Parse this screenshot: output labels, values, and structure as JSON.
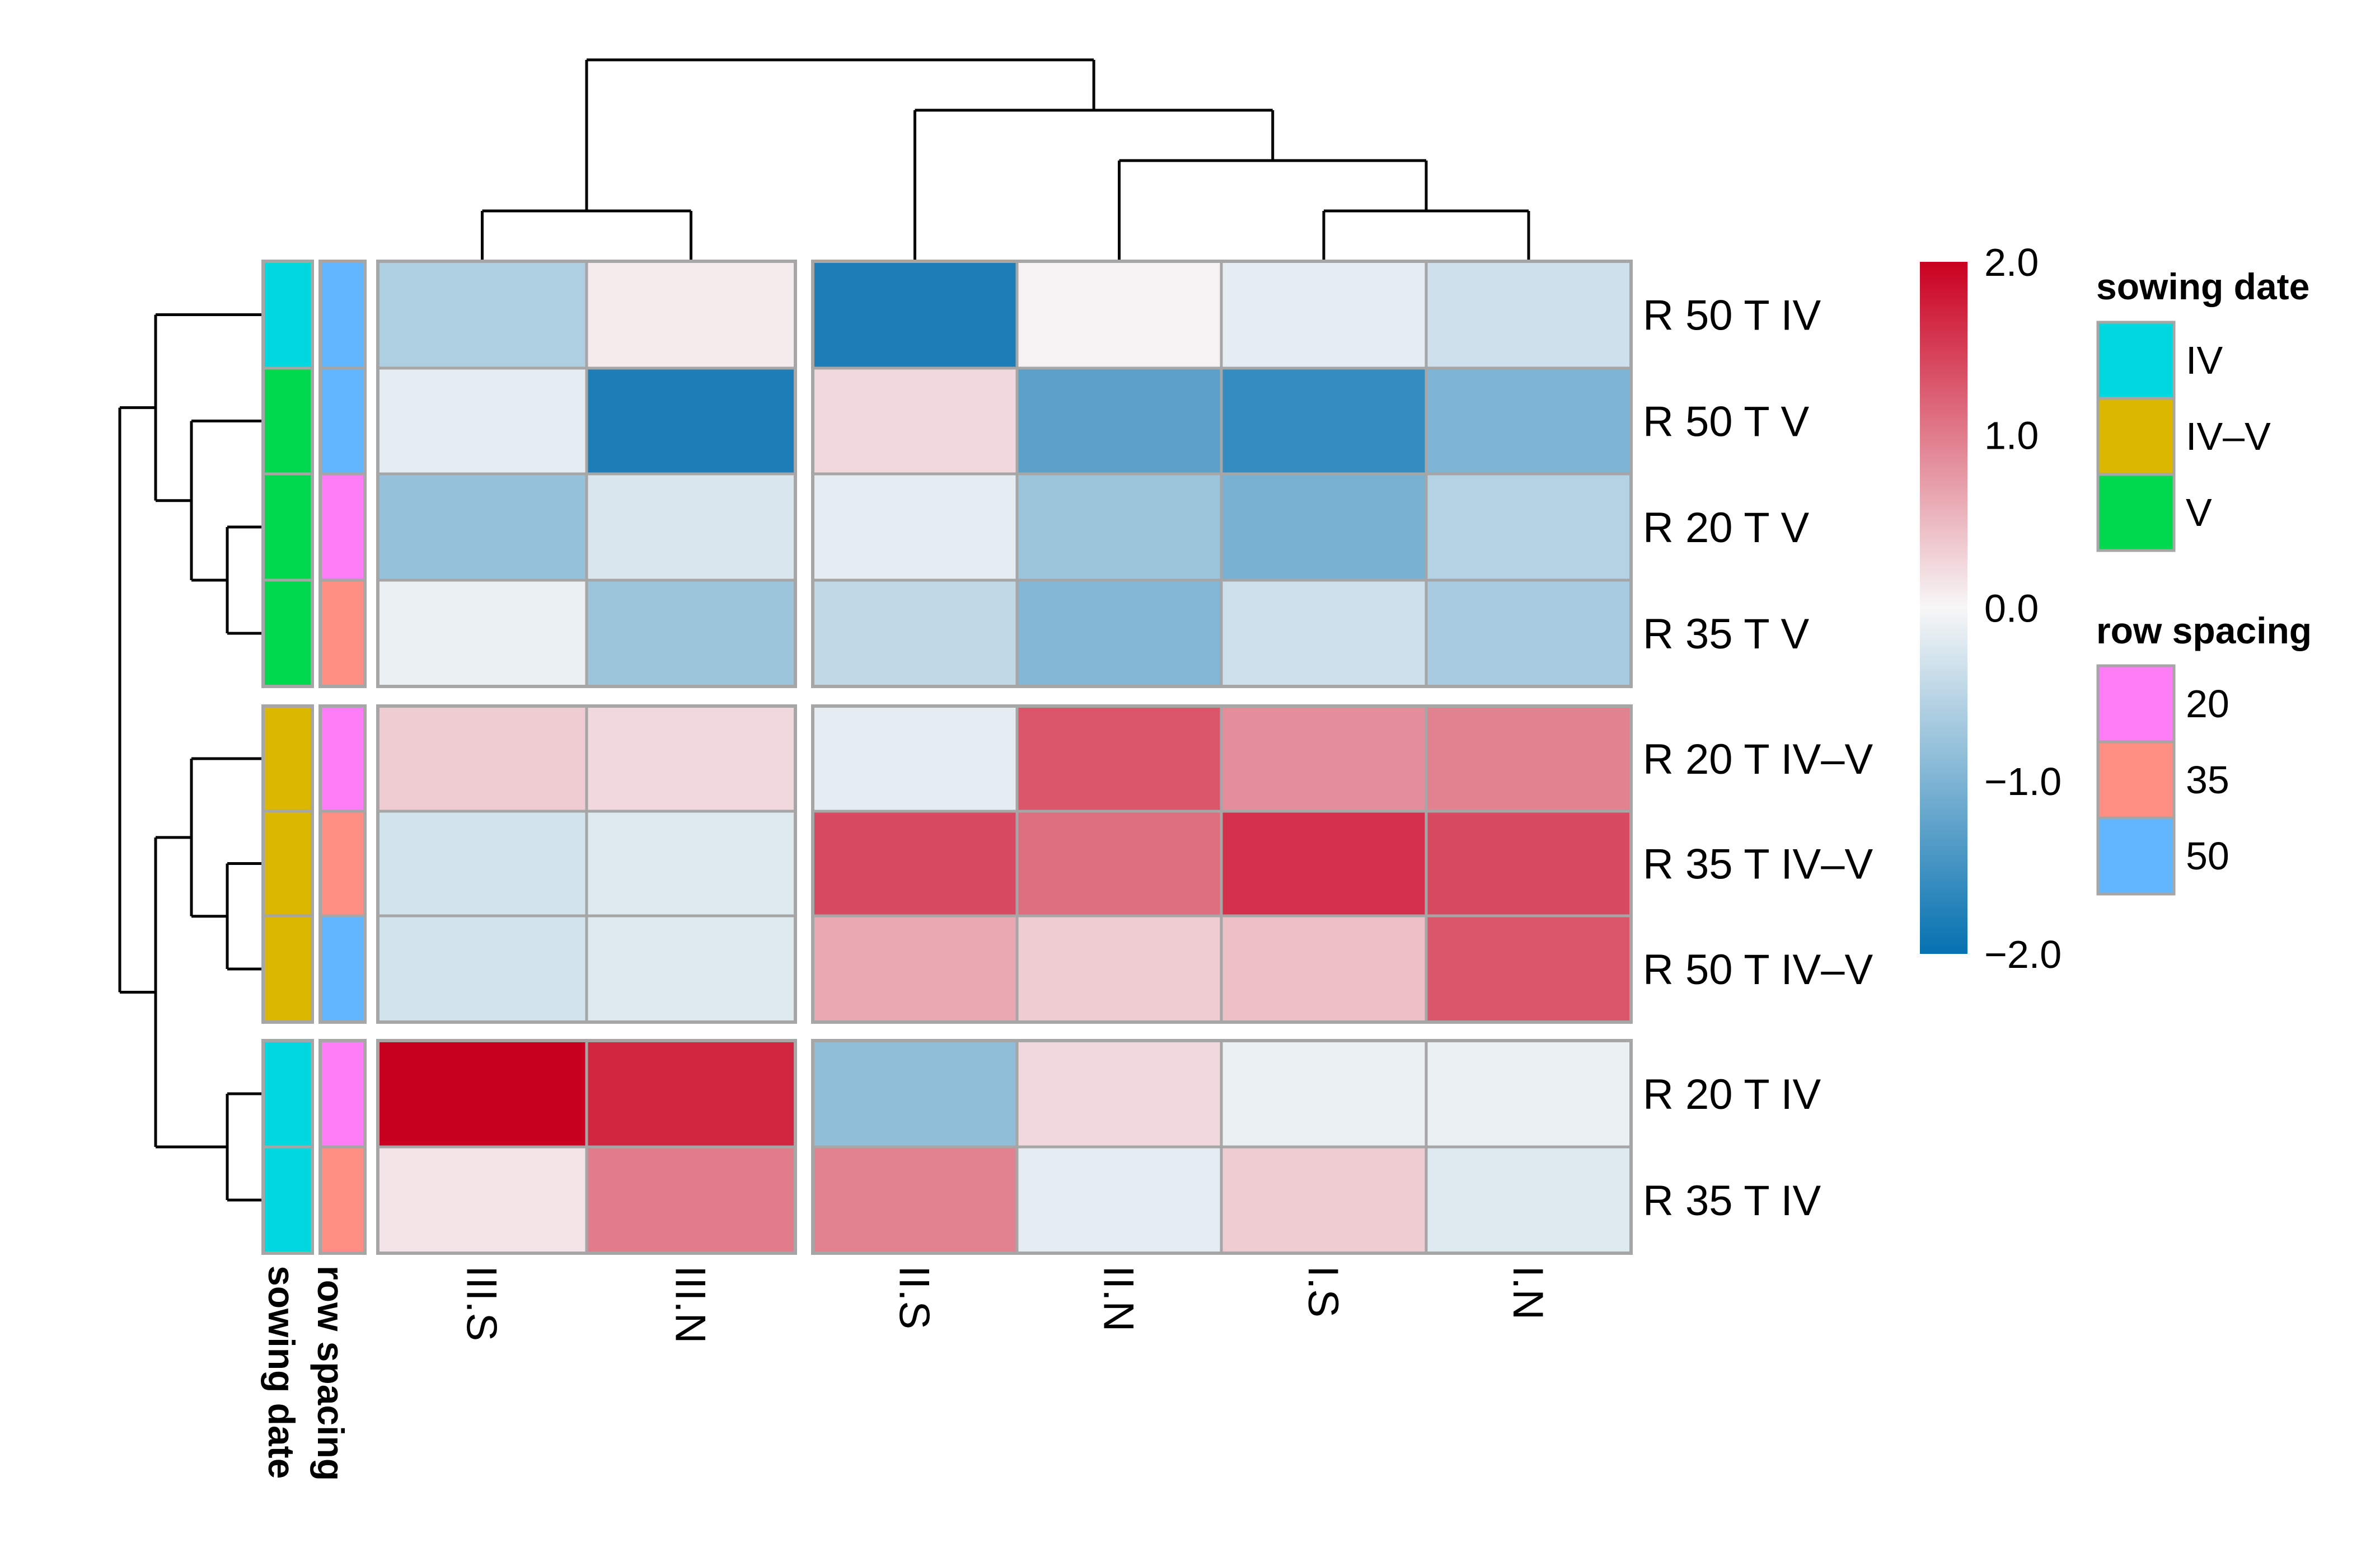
{
  "chart_data": {
    "type": "heatmap",
    "title": "",
    "columns": [
      "III.S",
      "III.N",
      "II.S",
      "II.N",
      "I.S",
      "I.N"
    ],
    "rows": [
      "R 50 T IV",
      "R 50 T V",
      "R 20 T V",
      "R 35 T V",
      "R 20 T IV–V",
      "R 35 T IV–V",
      "R 50 T IV–V",
      "R 20 T IV",
      "R 35 T IV"
    ],
    "values": [
      [
        -0.6,
        0.1,
        -1.8,
        0.05,
        -0.15,
        -0.35
      ],
      [
        -0.15,
        -1.8,
        0.25,
        -1.3,
        -1.6,
        -1.0
      ],
      [
        -0.8,
        -0.25,
        -0.15,
        -0.75,
        -1.05,
        -0.55
      ],
      [
        -0.1,
        -0.75,
        -0.45,
        -0.95,
        -0.35,
        -0.65
      ],
      [
        0.35,
        0.25,
        -0.15,
        1.3,
        0.85,
        0.95
      ],
      [
        -0.3,
        -0.2,
        1.4,
        1.1,
        1.6,
        1.4
      ],
      [
        -0.3,
        -0.2,
        0.65,
        0.35,
        0.45,
        1.3
      ],
      [
        2.0,
        1.7,
        -0.85,
        0.25,
        -0.1,
        -0.1
      ],
      [
        0.15,
        1.0,
        0.95,
        -0.15,
        0.35,
        -0.2
      ]
    ],
    "color_scale": {
      "min": -2.0,
      "max": 2.0,
      "tick_labels": [
        "2.0",
        "1.0",
        "0.0",
        "−1.0",
        "−2.0"
      ],
      "colors": [
        "#0571b0",
        "#f7f7f7",
        "#ca0020"
      ]
    },
    "row_groups": [
      [
        0,
        1,
        2,
        3
      ],
      [
        4,
        5,
        6
      ],
      [
        7,
        8
      ]
    ],
    "column_groups": [
      [
        0,
        1
      ],
      [
        2,
        3,
        4,
        5
      ]
    ],
    "annotations": {
      "sowing_date": {
        "label": "sowing date",
        "values": [
          "IV",
          "V",
          "V",
          "V",
          "IV–V",
          "IV–V",
          "IV–V",
          "IV",
          "IV"
        ]
      },
      "row_spacing": {
        "label": "row spacing",
        "values": [
          "50",
          "50",
          "20",
          "35",
          "20",
          "35",
          "50",
          "20",
          "35"
        ]
      }
    },
    "legends": {
      "sowing_date": {
        "title": "sowing date",
        "items": [
          {
            "label": "IV",
            "color": "#00d8e0"
          },
          {
            "label": "IV–V",
            "color": "#dbb700"
          },
          {
            "label": "V",
            "color": "#00d84e"
          }
        ]
      },
      "row_spacing": {
        "title": "row spacing",
        "items": [
          {
            "label": "20",
            "color": "#ff7cf7"
          },
          {
            "label": "35",
            "color": "#ff8e83"
          },
          {
            "label": "50",
            "color": "#62b6ff"
          }
        ]
      }
    },
    "dendrograms": {
      "columns": [
        [
          0,
          1
        ],
        [
          4,
          5
        ],
        [
          3,
          "n2"
        ],
        [
          2,
          "n3"
        ],
        [
          "n1",
          "n4"
        ]
      ],
      "rows": [
        [
          2,
          3
        ],
        [
          1,
          "n1"
        ],
        [
          0,
          "n2"
        ],
        [
          5,
          6
        ],
        [
          4,
          "n4"
        ],
        [
          7,
          8
        ],
        [
          "n5",
          "n6"
        ],
        [
          "n3",
          "n7"
        ]
      ]
    }
  }
}
